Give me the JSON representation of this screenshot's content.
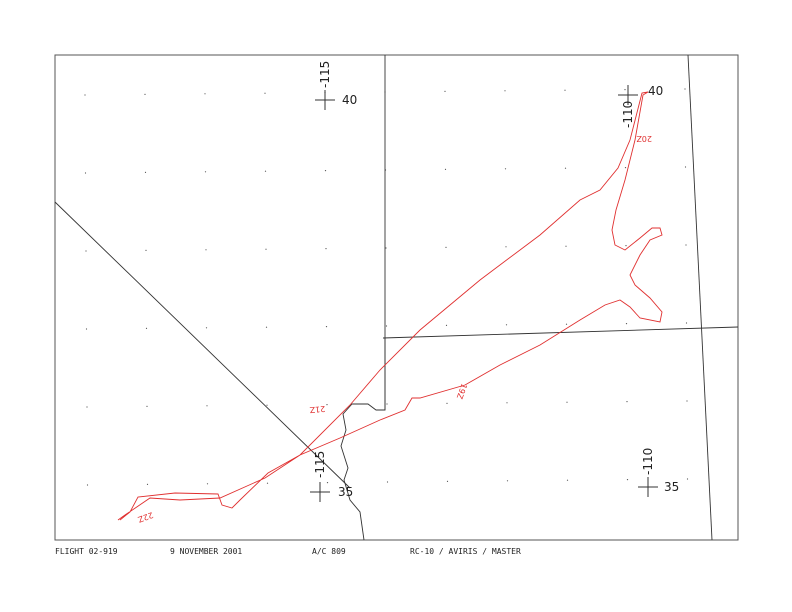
{
  "grid_labels": [
    {
      "lon": "-115",
      "lat": "40"
    },
    {
      "lon": "-110",
      "lat": "40"
    },
    {
      "lon": "-115",
      "lat": "35"
    },
    {
      "lon": "-110",
      "lat": "35"
    }
  ],
  "time_labels": [
    "20Z",
    "21Z",
    "19Z",
    "22Z"
  ],
  "footer": [
    "FLIGHT 02-919",
    "9 NOVEMBER 2001",
    "A/C 809",
    "RC-10 / AVIRIS / MASTER"
  ]
}
